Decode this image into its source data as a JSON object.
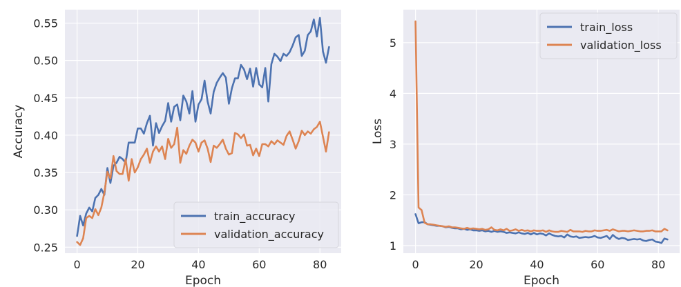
{
  "chart_data": [
    {
      "type": "line",
      "title": "",
      "xlabel": "Epoch",
      "ylabel": "Accuracy",
      "xlim": [
        -4,
        87
      ],
      "ylim": [
        0.242,
        0.568
      ],
      "xticks": [
        0,
        20,
        40,
        60,
        80
      ],
      "yticks": [
        0.25,
        0.3,
        0.35,
        0.4,
        0.45,
        0.5,
        0.55
      ],
      "grid": true,
      "legend_position": "lower-right",
      "series": [
        {
          "name": "train_accuracy",
          "color": "#4c72b0",
          "x": [
            0,
            1,
            2,
            3,
            4,
            5,
            6,
            7,
            8,
            9,
            10,
            11,
            12,
            13,
            14,
            15,
            16,
            17,
            18,
            19,
            20,
            21,
            22,
            23,
            24,
            25,
            26,
            27,
            28,
            29,
            30,
            31,
            32,
            33,
            34,
            35,
            36,
            37,
            38,
            39,
            40,
            41,
            42,
            43,
            44,
            45,
            46,
            47,
            48,
            49,
            50,
            51,
            52,
            53,
            54,
            55,
            56,
            57,
            58,
            59,
            60,
            61,
            62,
            63,
            64,
            65,
            66,
            67,
            68,
            69,
            70,
            71,
            72,
            73,
            74,
            75,
            76,
            77,
            78,
            79,
            80,
            81,
            82,
            83
          ],
          "values": [
            0.265,
            0.292,
            0.279,
            0.295,
            0.303,
            0.298,
            0.316,
            0.32,
            0.328,
            0.32,
            0.356,
            0.336,
            0.359,
            0.363,
            0.371,
            0.368,
            0.363,
            0.39,
            0.39,
            0.39,
            0.409,
            0.409,
            0.402,
            0.416,
            0.426,
            0.386,
            0.416,
            0.403,
            0.412,
            0.419,
            0.443,
            0.418,
            0.438,
            0.441,
            0.42,
            0.453,
            0.445,
            0.429,
            0.459,
            0.418,
            0.441,
            0.448,
            0.473,
            0.445,
            0.429,
            0.458,
            0.47,
            0.477,
            0.483,
            0.477,
            0.442,
            0.463,
            0.476,
            0.476,
            0.494,
            0.488,
            0.475,
            0.489,
            0.465,
            0.49,
            0.468,
            0.464,
            0.49,
            0.445,
            0.495,
            0.509,
            0.505,
            0.499,
            0.509,
            0.506,
            0.511,
            0.52,
            0.531,
            0.534,
            0.506,
            0.513,
            0.534,
            0.539,
            0.555,
            0.532,
            0.557,
            0.512,
            0.497,
            0.518
          ]
        },
        {
          "name": "validation_accuracy",
          "color": "#dd8452",
          "x": [
            0,
            1,
            2,
            3,
            4,
            5,
            6,
            7,
            8,
            9,
            10,
            11,
            12,
            13,
            14,
            15,
            16,
            17,
            18,
            19,
            20,
            21,
            22,
            23,
            24,
            25,
            26,
            27,
            28,
            29,
            30,
            31,
            32,
            33,
            34,
            35,
            36,
            37,
            38,
            39,
            40,
            41,
            42,
            43,
            44,
            45,
            46,
            47,
            48,
            49,
            50,
            51,
            52,
            53,
            54,
            55,
            56,
            57,
            58,
            59,
            60,
            61,
            62,
            63,
            64,
            65,
            66,
            67,
            68,
            69,
            70,
            71,
            72,
            73,
            74,
            75,
            76,
            77,
            78,
            79,
            80,
            81,
            82,
            83
          ],
          "values": [
            0.257,
            0.253,
            0.262,
            0.289,
            0.292,
            0.289,
            0.301,
            0.293,
            0.303,
            0.323,
            0.351,
            0.342,
            0.372,
            0.352,
            0.348,
            0.348,
            0.368,
            0.339,
            0.368,
            0.35,
            0.357,
            0.368,
            0.374,
            0.382,
            0.363,
            0.378,
            0.385,
            0.378,
            0.385,
            0.368,
            0.395,
            0.383,
            0.388,
            0.41,
            0.363,
            0.38,
            0.375,
            0.386,
            0.394,
            0.39,
            0.378,
            0.39,
            0.393,
            0.382,
            0.364,
            0.386,
            0.383,
            0.388,
            0.394,
            0.382,
            0.374,
            0.376,
            0.403,
            0.401,
            0.396,
            0.401,
            0.386,
            0.387,
            0.373,
            0.382,
            0.372,
            0.388,
            0.388,
            0.385,
            0.392,
            0.388,
            0.393,
            0.39,
            0.387,
            0.399,
            0.405,
            0.394,
            0.382,
            0.392,
            0.406,
            0.4,
            0.405,
            0.402,
            0.408,
            0.411,
            0.418,
            0.398,
            0.378,
            0.404
          ]
        }
      ]
    },
    {
      "type": "line",
      "title": "",
      "xlabel": "Epoch",
      "ylabel": "Loss",
      "xlim": [
        -4,
        87
      ],
      "ylim": [
        0.85,
        5.65
      ],
      "xticks": [
        0,
        20,
        40,
        60,
        80
      ],
      "yticks": [
        1,
        2,
        3,
        4,
        5
      ],
      "grid": true,
      "legend_position": "upper-right",
      "series": [
        {
          "name": "train_loss",
          "color": "#4c72b0",
          "x": [
            0,
            1,
            2,
            3,
            4,
            5,
            6,
            7,
            8,
            9,
            10,
            11,
            12,
            13,
            14,
            15,
            16,
            17,
            18,
            19,
            20,
            21,
            22,
            23,
            24,
            25,
            26,
            27,
            28,
            29,
            30,
            31,
            32,
            33,
            34,
            35,
            36,
            37,
            38,
            39,
            40,
            41,
            42,
            43,
            44,
            45,
            46,
            47,
            48,
            49,
            50,
            51,
            52,
            53,
            54,
            55,
            56,
            57,
            58,
            59,
            60,
            61,
            62,
            63,
            64,
            65,
            66,
            67,
            68,
            69,
            70,
            71,
            72,
            73,
            74,
            75,
            76,
            77,
            78,
            79,
            80,
            81,
            82,
            83
          ],
          "values": [
            1.62,
            1.44,
            1.46,
            1.46,
            1.42,
            1.41,
            1.4,
            1.39,
            1.39,
            1.38,
            1.36,
            1.37,
            1.35,
            1.34,
            1.34,
            1.32,
            1.33,
            1.31,
            1.32,
            1.3,
            1.3,
            1.29,
            1.3,
            1.28,
            1.29,
            1.27,
            1.29,
            1.27,
            1.28,
            1.27,
            1.25,
            1.26,
            1.25,
            1.24,
            1.26,
            1.24,
            1.23,
            1.25,
            1.22,
            1.25,
            1.22,
            1.24,
            1.23,
            1.2,
            1.24,
            1.21,
            1.19,
            1.18,
            1.19,
            1.16,
            1.22,
            1.18,
            1.17,
            1.18,
            1.15,
            1.16,
            1.17,
            1.16,
            1.17,
            1.19,
            1.16,
            1.15,
            1.17,
            1.19,
            1.13,
            1.21,
            1.16,
            1.13,
            1.15,
            1.14,
            1.11,
            1.12,
            1.13,
            1.12,
            1.13,
            1.1,
            1.09,
            1.11,
            1.12,
            1.08,
            1.07,
            1.05,
            1.14,
            1.12
          ]
        },
        {
          "name": "validation_loss",
          "color": "#dd8452",
          "x": [
            0,
            1,
            2,
            3,
            4,
            5,
            6,
            7,
            8,
            9,
            10,
            11,
            12,
            13,
            14,
            15,
            16,
            17,
            18,
            19,
            20,
            21,
            22,
            23,
            24,
            25,
            26,
            27,
            28,
            29,
            30,
            31,
            32,
            33,
            34,
            35,
            36,
            37,
            38,
            39,
            40,
            41,
            42,
            43,
            44,
            45,
            46,
            47,
            48,
            49,
            50,
            51,
            52,
            53,
            54,
            55,
            56,
            57,
            58,
            59,
            60,
            61,
            62,
            63,
            64,
            65,
            66,
            67,
            68,
            69,
            70,
            71,
            72,
            73,
            74,
            75,
            76,
            77,
            78,
            79,
            80,
            81,
            82,
            83
          ],
          "values": [
            5.42,
            1.75,
            1.7,
            1.45,
            1.42,
            1.42,
            1.41,
            1.4,
            1.39,
            1.38,
            1.37,
            1.38,
            1.36,
            1.36,
            1.35,
            1.34,
            1.33,
            1.35,
            1.33,
            1.34,
            1.33,
            1.32,
            1.33,
            1.31,
            1.32,
            1.36,
            1.31,
            1.3,
            1.32,
            1.3,
            1.33,
            1.29,
            1.3,
            1.32,
            1.29,
            1.31,
            1.29,
            1.3,
            1.28,
            1.3,
            1.29,
            1.29,
            1.3,
            1.27,
            1.3,
            1.28,
            1.27,
            1.27,
            1.29,
            1.28,
            1.27,
            1.31,
            1.28,
            1.28,
            1.28,
            1.27,
            1.29,
            1.28,
            1.28,
            1.3,
            1.29,
            1.29,
            1.3,
            1.31,
            1.29,
            1.32,
            1.3,
            1.28,
            1.29,
            1.29,
            1.28,
            1.29,
            1.3,
            1.29,
            1.28,
            1.28,
            1.29,
            1.29,
            1.3,
            1.28,
            1.28,
            1.28,
            1.33,
            1.3
          ]
        }
      ]
    }
  ]
}
